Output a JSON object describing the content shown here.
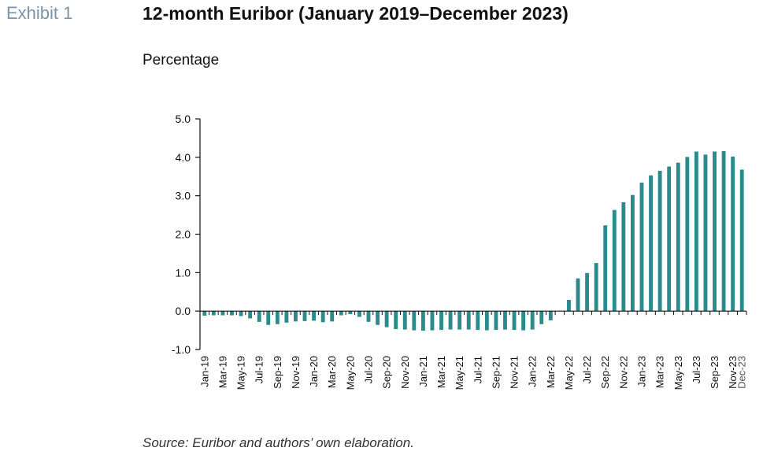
{
  "header": {
    "exhibit_label": "Exhibit 1",
    "title": "12-month Euribor (January 2019–December 2023)",
    "unit_label": "Percentage"
  },
  "footer": {
    "source": "Source: Euribor and authors’ own elaboration."
  },
  "colors": {
    "bar": "#2b8a8c",
    "axis": "#111111"
  },
  "chart_data": {
    "type": "bar",
    "title": "12-month Euribor (January 2019–December 2023)",
    "ylabel": "Percentage",
    "xlabel": "",
    "ylim": [
      -1.0,
      5.0
    ],
    "yticks": [
      5.0,
      4.0,
      3.0,
      2.0,
      1.0,
      0.0,
      -1.0
    ],
    "grid": false,
    "categories": [
      "Jan-19",
      "Feb-19",
      "Mar-19",
      "Apr-19",
      "May-19",
      "Jun-19",
      "Jul-19",
      "Aug-19",
      "Sep-19",
      "Oct-19",
      "Nov-19",
      "Dec-19",
      "Jan-20",
      "Feb-20",
      "Mar-20",
      "Apr-20",
      "May-20",
      "Jun-20",
      "Jul-20",
      "Aug-20",
      "Sep-20",
      "Oct-20",
      "Nov-20",
      "Dec-20",
      "Jan-21",
      "Feb-21",
      "Mar-21",
      "Apr-21",
      "May-21",
      "Jun-21",
      "Jul-21",
      "Aug-21",
      "Sep-21",
      "Oct-21",
      "Nov-21",
      "Dec-21",
      "Jan-22",
      "Feb-22",
      "Mar-22",
      "Apr-22",
      "May-22",
      "Jun-22",
      "Jul-22",
      "Aug-22",
      "Sep-22",
      "Oct-22",
      "Nov-22",
      "Dec-22",
      "Jan-23",
      "Feb-23",
      "Mar-23",
      "Apr-23",
      "May-23",
      "Jun-23",
      "Jul-23",
      "Aug-23",
      "Sep-23",
      "Oct-23",
      "Nov-23",
      "Dec-23"
    ],
    "tick_labels": [
      "Jan-19",
      "Mar-19",
      "May-19",
      "Jul-19",
      "Sep-19",
      "Nov-19",
      "Jan-20",
      "Mar-20",
      "May-20",
      "Jul-20",
      "Sep-20",
      "Nov-20",
      "Jan-21",
      "Mar-21",
      "May-21",
      "Jul-21",
      "Sep-21",
      "Nov-21",
      "Jan-22",
      "Mar-22",
      "May-22",
      "Jul-22",
      "Sep-22",
      "Nov-22",
      "Jan-23",
      "Mar-23",
      "May-23",
      "Jul-23",
      "Sep-23",
      "Nov-23",
      "Dec-23"
    ],
    "values": [
      -0.12,
      -0.11,
      -0.11,
      -0.11,
      -0.13,
      -0.19,
      -0.28,
      -0.36,
      -0.34,
      -0.3,
      -0.27,
      -0.26,
      -0.25,
      -0.29,
      -0.27,
      -0.11,
      -0.08,
      -0.15,
      -0.28,
      -0.36,
      -0.42,
      -0.47,
      -0.48,
      -0.5,
      -0.51,
      -0.5,
      -0.49,
      -0.48,
      -0.48,
      -0.48,
      -0.49,
      -0.5,
      -0.49,
      -0.48,
      -0.49,
      -0.5,
      -0.48,
      -0.34,
      -0.24,
      0.01,
      0.29,
      0.85,
      0.99,
      1.25,
      2.23,
      2.63,
      2.83,
      3.02,
      3.34,
      3.53,
      3.65,
      3.76,
      3.86,
      4.01,
      4.15,
      4.07,
      4.15,
      4.16,
      4.02,
      3.68
    ]
  }
}
